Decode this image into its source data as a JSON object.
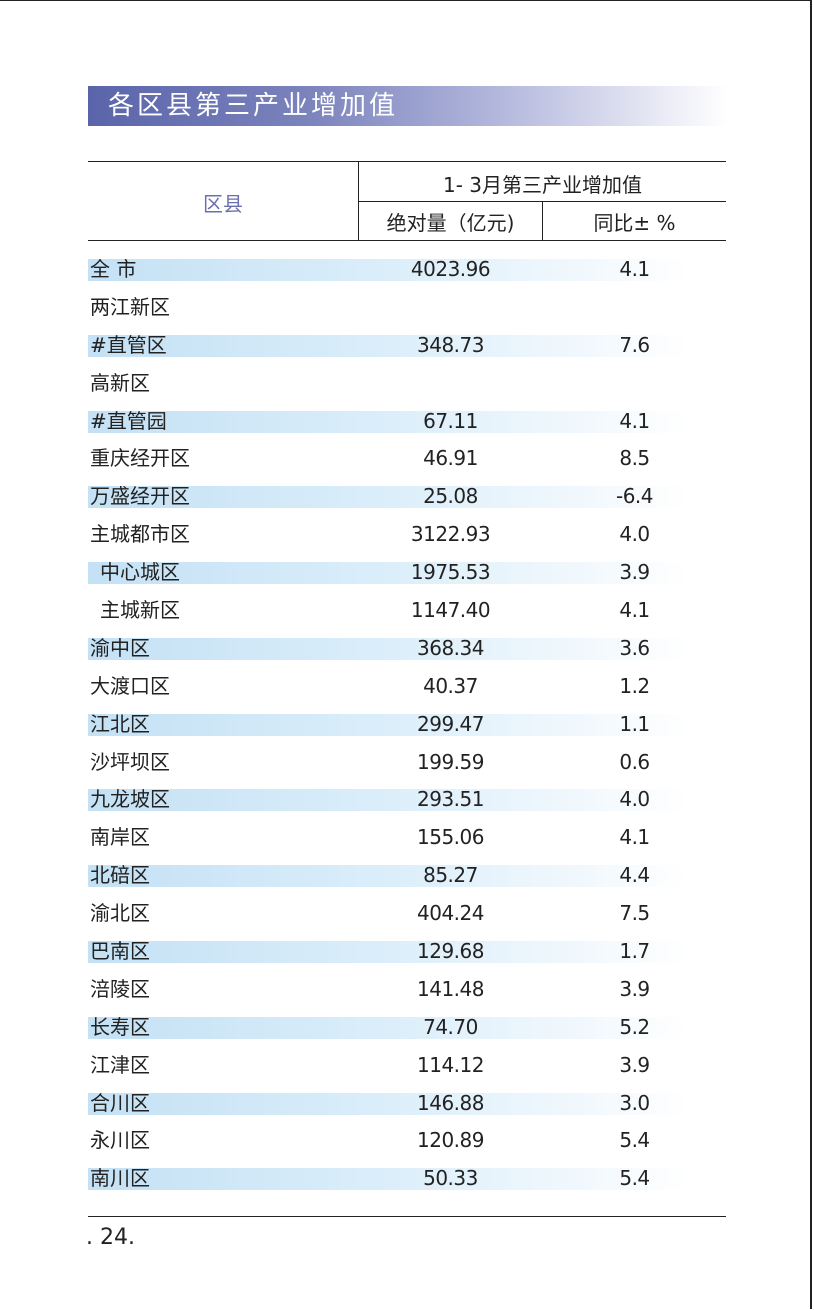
{
  "title": "各区县第三产业增加值",
  "table": {
    "header": {
      "county": "区县",
      "group": "1- 3月第三产业增加值",
      "absolute": "绝对量（亿元)",
      "yoy": "同比± %"
    },
    "rows": [
      {
        "name": "全  市",
        "abs": "4023.96",
        "yoy": "4.1"
      },
      {
        "name": "两江新区",
        "abs": "",
        "yoy": ""
      },
      {
        "name": "#直管区",
        "abs": "348.73",
        "yoy": "7.6"
      },
      {
        "name": "高新区",
        "abs": "",
        "yoy": ""
      },
      {
        "name": "#直管园",
        "abs": "67.11",
        "yoy": "4.1"
      },
      {
        "name": "重庆经开区",
        "abs": "46.91",
        "yoy": "8.5"
      },
      {
        "name": "万盛经开区",
        "abs": "25.08",
        "yoy": "-6.4"
      },
      {
        "name": "主城都市区",
        "abs": "3122.93",
        "yoy": "4.0"
      },
      {
        "name": "中心城区",
        "abs": "1975.53",
        "yoy": "3.9"
      },
      {
        "name": "主城新区",
        "abs": "1147.40",
        "yoy": "4.1"
      },
      {
        "name": "渝中区",
        "abs": "368.34",
        "yoy": "3.6"
      },
      {
        "name": "大渡口区",
        "abs": "40.37",
        "yoy": "1.2"
      },
      {
        "name": "江北区",
        "abs": "299.47",
        "yoy": "1.1"
      },
      {
        "name": "沙坪坝区",
        "abs": "199.59",
        "yoy": "0.6"
      },
      {
        "name": "九龙坡区",
        "abs": "293.51",
        "yoy": "4.0"
      },
      {
        "name": "南岸区",
        "abs": "155.06",
        "yoy": "4.1"
      },
      {
        "name": "北碚区",
        "abs": "85.27",
        "yoy": "4.4"
      },
      {
        "name": "渝北区",
        "abs": "404.24",
        "yoy": "7.5"
      },
      {
        "name": "巴南区",
        "abs": "129.68",
        "yoy": "1.7"
      },
      {
        "name": "涪陵区",
        "abs": "141.48",
        "yoy": "3.9"
      },
      {
        "name": "长寿区",
        "abs": "74.70",
        "yoy": "5.2"
      },
      {
        "name": "江津区",
        "abs": "114.12",
        "yoy": "3.9"
      },
      {
        "name": "合川区",
        "abs": "146.88",
        "yoy": "3.0"
      },
      {
        "name": "永川区",
        "abs": "120.89",
        "yoy": "5.4"
      },
      {
        "name": "南川区",
        "abs": "50.33",
        "yoy": "5.4"
      }
    ]
  },
  "page_number": ". 24.",
  "colors": {
    "title_bar": "#5a64aa",
    "row_stripe": "#c4e1f5",
    "header_county_text": "#6b6fae"
  }
}
